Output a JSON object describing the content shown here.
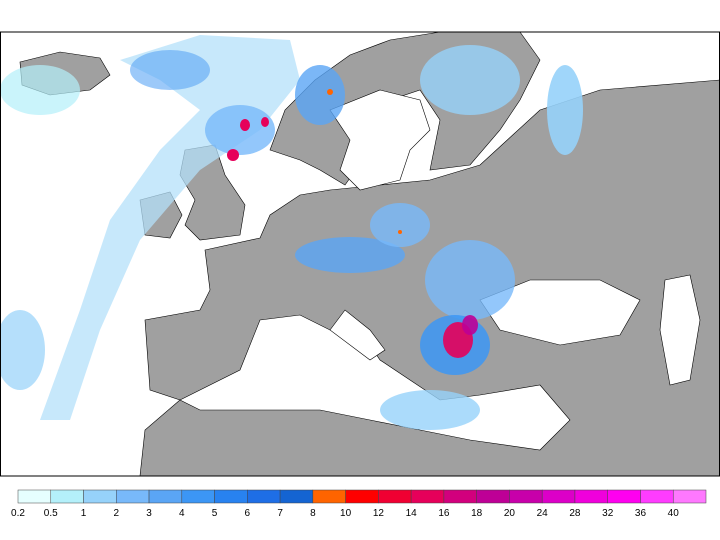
{
  "colorbar": {
    "levels": [
      0.2,
      0.5,
      1,
      2,
      3,
      4,
      5,
      6,
      7,
      8,
      10,
      12,
      14,
      16,
      18,
      20,
      24,
      28,
      32,
      36,
      40
    ],
    "colors": [
      "#e6ffff",
      "#b4f0fa",
      "#96d2fa",
      "#78b9fa",
      "#5aa5f5",
      "#3c96f5",
      "#2882f0",
      "#1e6ee6",
      "#1464d2",
      "#ff6400",
      "#ff0000",
      "#f00032",
      "#e6005a",
      "#d2007d",
      "#be0096",
      "#c800aa",
      "#dc00c8",
      "#f000dc",
      "#ff00f0",
      "#ff3cff",
      "#ff78ff"
    ]
  }
}
